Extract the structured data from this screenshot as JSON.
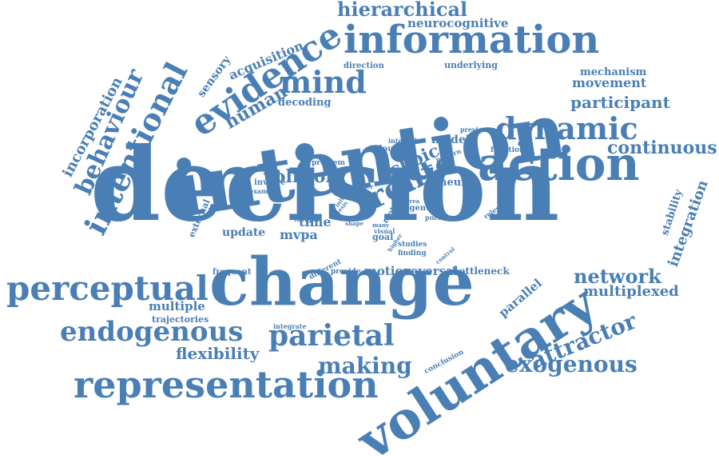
{
  "theme": {
    "word_color": "#4a7fb5",
    "background": "#ffffff"
  },
  "words": [
    "decision",
    "change",
    "intention",
    "voluntary",
    "information",
    "action",
    "evidence",
    "representation",
    "perceptual",
    "dynamic",
    "fronto",
    "intentional",
    "mind",
    "endogenous",
    "parietal",
    "behaviour",
    "hierarchical",
    "network",
    "making",
    "exogenous",
    "attractor",
    "continuous",
    "participant",
    "flexibility",
    "volition",
    "choice",
    "human",
    "movement",
    "multiplexed",
    "integration",
    "incorporation",
    "acquisition",
    "sensory",
    "neurocognitive",
    "mechanism",
    "decoding",
    "model",
    "neural",
    "update",
    "mvpa",
    "time",
    "motion",
    "reversal",
    "bottleneck",
    "parallel",
    "multiple",
    "stability",
    "trajectories",
    "underlying",
    "direction",
    "colour",
    "internal",
    "functional",
    "previous",
    "pattern",
    "problem",
    "involve",
    "example",
    "order",
    "effort",
    "external",
    "initial",
    "insight",
    "shape",
    "thesis",
    "cost",
    "motor",
    "area",
    "agent",
    "value",
    "pursue",
    "relevant",
    "many",
    "visual",
    "goal",
    "studies",
    "finding",
    "different",
    "provide",
    "frequent",
    "integrate",
    "conclusion",
    "higher",
    "control"
  ]
}
